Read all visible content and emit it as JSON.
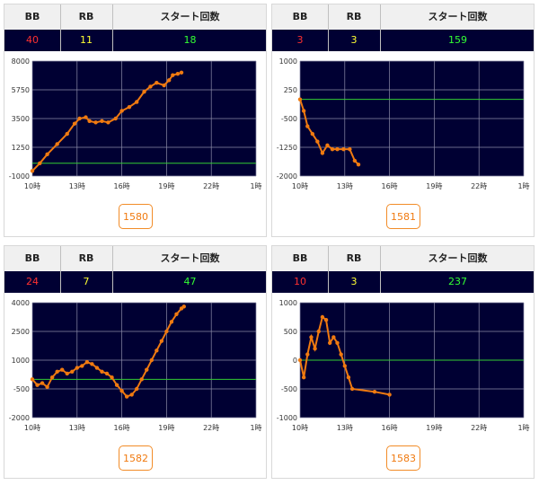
{
  "header": {
    "bb_label": "BB",
    "rb_label": "RB",
    "start_label": "スタート回数"
  },
  "colors": {
    "bb": "#ff3030",
    "rb": "#ffff33",
    "start": "#33ff33",
    "line": "#f07a10",
    "plot_bg": "#000033",
    "grid": "#8c8ca8",
    "baseline": "#33cc33"
  },
  "machines": [
    {
      "bb": "40",
      "rb": "11",
      "start": "18",
      "machine_no": "1580",
      "chart_data": {
        "type": "line",
        "ylim": [
          -1000,
          8000
        ],
        "yticks": [
          "8000",
          "5750",
          "3500",
          "1250",
          "-1000"
        ],
        "xlim": [
          10,
          28
        ],
        "xticks": [
          "10時",
          "13時",
          "16時",
          "19時",
          "22時",
          "1時"
        ],
        "baseline": 0,
        "series": [
          {
            "x": [
              10,
              10.6,
              11.2,
              12,
              12.8,
              13.4,
              13.8,
              14.3,
              14.6,
              15.1,
              15.6,
              16.1,
              16.7,
              17.2,
              17.8,
              18.4,
              19,
              19.5,
              20,
              20.6,
              21,
              21.3,
              21.7,
              22
            ],
            "y": [
              -600,
              0,
              700,
              1500,
              2300,
              3100,
              3500,
              3600,
              3300,
              3200,
              3300,
              3200,
              3500,
              4100,
              4400,
              4800,
              5600,
              6000,
              6300,
              6100,
              6500,
              6900,
              7000,
              7100
            ]
          }
        ]
      }
    },
    {
      "bb": "3",
      "rb": "3",
      "start": "159",
      "machine_no": "1581",
      "chart_data": {
        "type": "line",
        "ylim": [
          -2000,
          1000
        ],
        "yticks": [
          "1000",
          "250",
          "-500",
          "-1250",
          "-2000"
        ],
        "xlim": [
          10,
          28
        ],
        "xticks": [
          "10時",
          "13時",
          "16時",
          "19時",
          "22時",
          "1時"
        ],
        "baseline": 0,
        "series": [
          {
            "x": [
              10,
              10.3,
              10.6,
              11,
              11.4,
              11.8,
              12.2,
              12.6,
              13,
              13.5,
              14,
              14.4,
              14.7
            ],
            "y": [
              0,
              -300,
              -700,
              -900,
              -1100,
              -1400,
              -1200,
              -1300,
              -1300,
              -1300,
              -1300,
              -1600,
              -1700
            ]
          }
        ]
      }
    },
    {
      "bb": "24",
      "rb": "7",
      "start": "47",
      "machine_no": "1582",
      "chart_data": {
        "type": "line",
        "ylim": [
          -2000,
          4000
        ],
        "yticks": [
          "4000",
          "2500",
          "1000",
          "-500",
          "-2000"
        ],
        "xlim": [
          10,
          28
        ],
        "xticks": [
          "10時",
          "13時",
          "16時",
          "19時",
          "22時",
          "1時"
        ],
        "baseline": 0,
        "series": [
          {
            "x": [
              10,
              10.4,
              10.8,
              11.2,
              11.6,
              12,
              12.4,
              12.8,
              13.2,
              13.6,
              14,
              14.4,
              14.8,
              15.2,
              15.6,
              16,
              16.4,
              16.8,
              17.2,
              17.6,
              18,
              18.4,
              18.8,
              19.2,
              19.6,
              20,
              20.4,
              20.8,
              21.2,
              21.6,
              22,
              22.2
            ],
            "y": [
              0,
              -300,
              -200,
              -400,
              100,
              400,
              500,
              300,
              400,
              600,
              700,
              900,
              800,
              600,
              400,
              300,
              100,
              -300,
              -600,
              -900,
              -800,
              -500,
              0,
              500,
              1000,
              1500,
              2000,
              2500,
              3000,
              3400,
              3700,
              3800
            ]
          }
        ]
      }
    },
    {
      "bb": "10",
      "rb": "3",
      "start": "237",
      "machine_no": "1583",
      "chart_data": {
        "type": "line",
        "ylim": [
          -1000,
          1000
        ],
        "yticks": [
          "1000",
          "500",
          "0",
          "-500",
          "-1000"
        ],
        "xlim": [
          10,
          28
        ],
        "xticks": [
          "10時",
          "13時",
          "16時",
          "19時",
          "22時",
          "1時"
        ],
        "baseline": 0,
        "series": [
          {
            "x": [
              10,
              10.3,
              10.6,
              10.9,
              11.2,
              11.5,
              11.8,
              12.1,
              12.4,
              12.7,
              13,
              13.3,
              13.6,
              13.9,
              14.2,
              16,
              17.2
            ],
            "y": [
              0,
              -300,
              100,
              400,
              200,
              500,
              750,
              700,
              300,
              400,
              300,
              100,
              -100,
              -300,
              -500,
              -550,
              -600
            ]
          }
        ]
      }
    }
  ]
}
